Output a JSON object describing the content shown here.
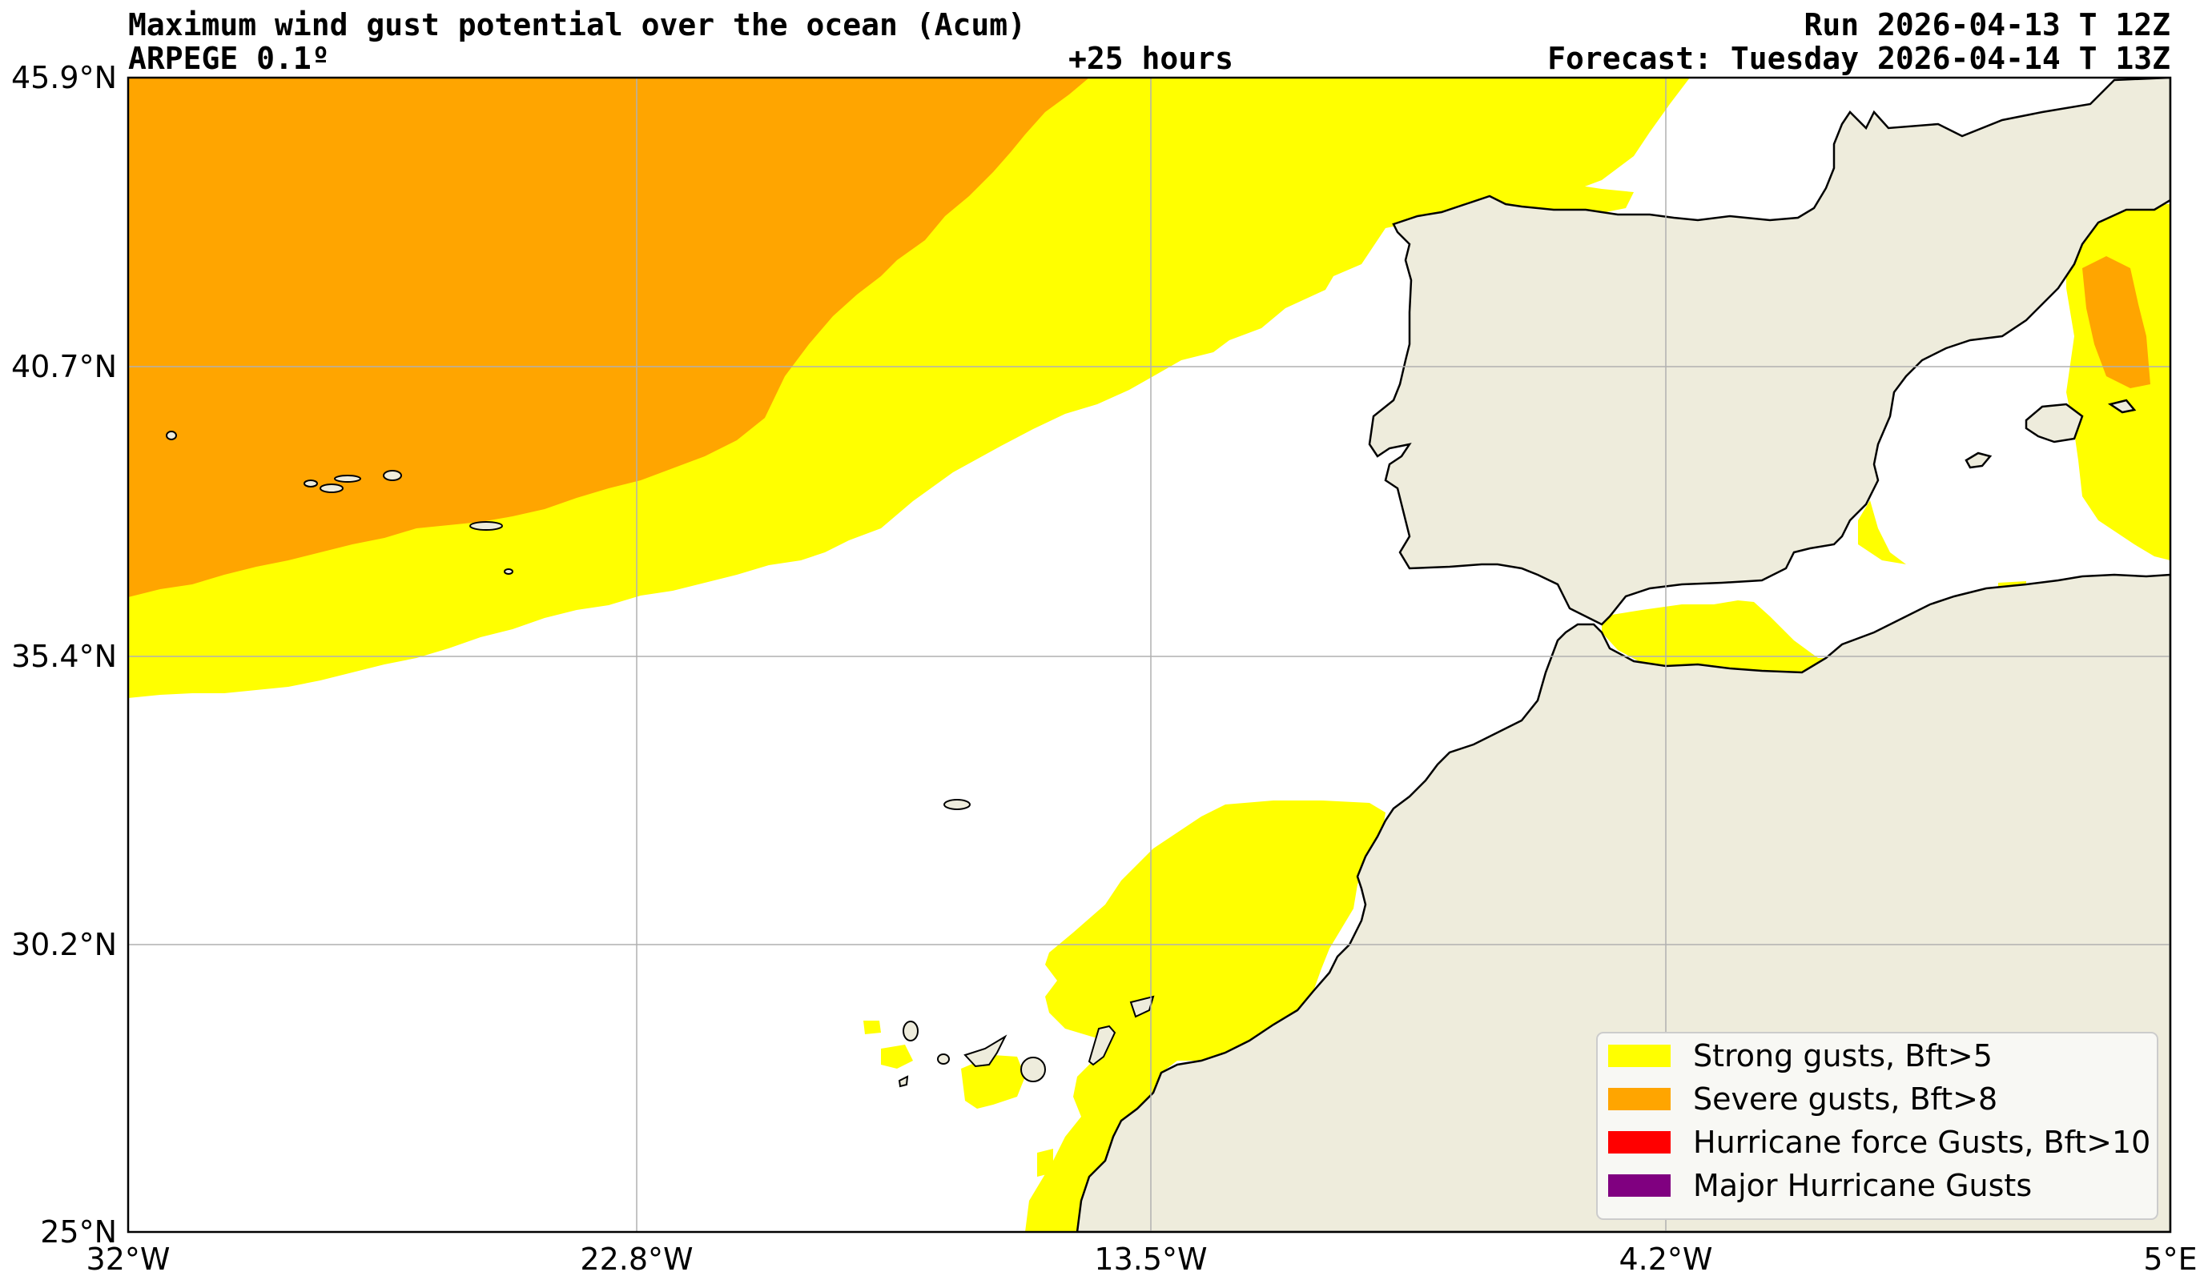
{
  "header": {
    "title": "Maximum wind gust potential over the ocean (Acum)",
    "model": "ARPEGE 0.1º",
    "lead_time": "+25 hours",
    "run": "Run 2026-04-13 T 12Z",
    "forecast": "Forecast: Tuesday 2026-04-14 T 13Z"
  },
  "axes": {
    "lat_labels": [
      "45.9°N",
      "40.7°N",
      "35.4°N",
      "30.2°N",
      "25°N"
    ],
    "lon_labels": [
      "32°W",
      "22.8°W",
      "13.5°W",
      "4.2°W",
      "5°E"
    ],
    "grid": true
  },
  "legend": {
    "placement": "bottom-right",
    "items": [
      {
        "label": "Strong gusts, Bft>5",
        "color": "#ffff00"
      },
      {
        "label": "Severe gusts, Bft>8",
        "color": "#ffa500"
      },
      {
        "label": "Hurricane force Gusts, Bft>10",
        "color": "#ff0000"
      },
      {
        "label": "Major Hurricane Gusts",
        "color": "#800080"
      }
    ]
  },
  "colors": {
    "ocean": "#ffffff",
    "land": "#eeecdc",
    "coastline": "#000000",
    "gridline": "#b0b0b0"
  }
}
